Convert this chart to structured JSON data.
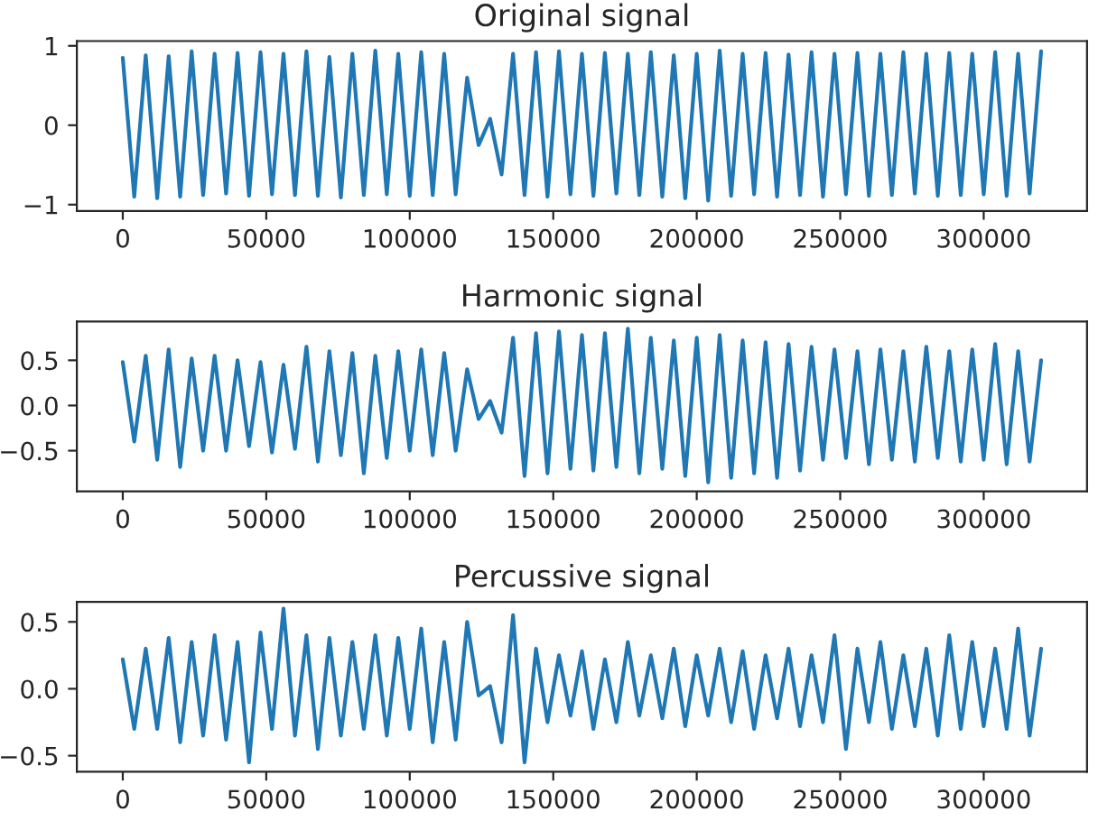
{
  "chart_data": [
    {
      "type": "line",
      "title": "Original signal",
      "xlim": [
        -16000,
        336000
      ],
      "xticks": [
        0,
        50000,
        100000,
        150000,
        200000,
        250000,
        300000
      ],
      "ylim": [
        -1.08,
        1.06
      ],
      "yticks": [
        -1,
        0,
        1
      ],
      "grid": false,
      "legend": false,
      "x": [
        0,
        4000,
        8000,
        12000,
        16000,
        20000,
        24000,
        28000,
        32000,
        36000,
        40000,
        44000,
        48000,
        52000,
        56000,
        60000,
        64000,
        68000,
        72000,
        76000,
        80000,
        84000,
        88000,
        92000,
        96000,
        100000,
        104000,
        108000,
        112000,
        116000,
        120000,
        124000,
        128000,
        132000,
        136000,
        140000,
        144000,
        148000,
        152000,
        156000,
        160000,
        164000,
        168000,
        172000,
        176000,
        180000,
        184000,
        188000,
        192000,
        196000,
        200000,
        204000,
        208000,
        212000,
        216000,
        220000,
        224000,
        228000,
        232000,
        236000,
        240000,
        244000,
        248000,
        252000,
        256000,
        260000,
        264000,
        268000,
        272000,
        276000,
        280000,
        284000,
        288000,
        292000,
        296000,
        300000,
        304000,
        308000,
        312000,
        316000,
        320000
      ],
      "series": [
        {
          "color": "#1f77b4",
          "values": [
            0.85,
            -0.9,
            0.88,
            -0.92,
            0.87,
            -0.9,
            0.93,
            -0.88,
            0.9,
            -0.86,
            0.91,
            -0.89,
            0.92,
            -0.87,
            0.9,
            -0.88,
            0.93,
            -0.89,
            0.86,
            -0.91,
            0.9,
            -0.88,
            0.94,
            -0.87,
            0.9,
            -0.89,
            0.92,
            -0.88,
            0.9,
            -0.87,
            0.6,
            -0.25,
            0.08,
            -0.62,
            0.9,
            -0.88,
            0.92,
            -0.9,
            0.93,
            -0.87,
            0.9,
            -0.89,
            0.91,
            -0.86,
            0.9,
            -0.88,
            0.92,
            -0.9,
            0.88,
            -0.92,
            0.9,
            -0.95,
            0.94,
            -0.89,
            0.9,
            -0.87,
            0.91,
            -0.9,
            0.89,
            -0.88,
            0.92,
            -0.9,
            0.9,
            -0.87,
            0.91,
            -0.89,
            0.9,
            -0.88,
            0.92,
            -0.86,
            0.9,
            -0.89,
            0.91,
            -0.88,
            0.9,
            -0.87,
            0.92,
            -0.89,
            0.9,
            -0.86,
            0.93
          ]
        }
      ]
    },
    {
      "type": "line",
      "title": "Harmonic signal",
      "xlim": [
        -16000,
        336000
      ],
      "xticks": [
        0,
        50000,
        100000,
        150000,
        200000,
        250000,
        300000
      ],
      "ylim": [
        -0.95,
        0.93
      ],
      "yticks": [
        -0.5,
        {
          "value": 0,
          "label": "0.0"
        },
        0.5
      ],
      "grid": false,
      "legend": false,
      "x": [
        0,
        4000,
        8000,
        12000,
        16000,
        20000,
        24000,
        28000,
        32000,
        36000,
        40000,
        44000,
        48000,
        52000,
        56000,
        60000,
        64000,
        68000,
        72000,
        76000,
        80000,
        84000,
        88000,
        92000,
        96000,
        100000,
        104000,
        108000,
        112000,
        116000,
        120000,
        124000,
        128000,
        132000,
        136000,
        140000,
        144000,
        148000,
        152000,
        156000,
        160000,
        164000,
        168000,
        172000,
        176000,
        180000,
        184000,
        188000,
        192000,
        196000,
        200000,
        204000,
        208000,
        212000,
        216000,
        220000,
        224000,
        228000,
        232000,
        236000,
        240000,
        244000,
        248000,
        252000,
        256000,
        260000,
        264000,
        268000,
        272000,
        276000,
        280000,
        284000,
        288000,
        292000,
        296000,
        300000,
        304000,
        308000,
        312000,
        316000,
        320000
      ],
      "series": [
        {
          "color": "#1f77b4",
          "values": [
            0.48,
            -0.4,
            0.55,
            -0.6,
            0.62,
            -0.68,
            0.52,
            -0.5,
            0.55,
            -0.5,
            0.5,
            -0.45,
            0.48,
            -0.52,
            0.45,
            -0.48,
            0.65,
            -0.62,
            0.6,
            -0.55,
            0.58,
            -0.75,
            0.55,
            -0.58,
            0.6,
            -0.5,
            0.62,
            -0.55,
            0.58,
            -0.5,
            0.4,
            -0.15,
            0.05,
            -0.3,
            0.75,
            -0.78,
            0.8,
            -0.75,
            0.82,
            -0.7,
            0.78,
            -0.72,
            0.8,
            -0.68,
            0.85,
            -0.75,
            0.75,
            -0.7,
            0.72,
            -0.78,
            0.75,
            -0.85,
            0.78,
            -0.8,
            0.72,
            -0.75,
            0.7,
            -0.8,
            0.68,
            -0.72,
            0.65,
            -0.6,
            0.62,
            -0.58,
            0.6,
            -0.65,
            0.62,
            -0.6,
            0.6,
            -0.62,
            0.65,
            -0.58,
            0.6,
            -0.62,
            0.62,
            -0.6,
            0.68,
            -0.65,
            0.6,
            -0.62,
            0.5
          ]
        }
      ]
    },
    {
      "type": "line",
      "title": "Percussive signal",
      "xlim": [
        -16000,
        336000
      ],
      "xticks": [
        0,
        50000,
        100000,
        150000,
        200000,
        250000,
        300000
      ],
      "ylim": [
        -0.62,
        0.65
      ],
      "yticks": [
        -0.5,
        {
          "value": 0,
          "label": "0.0"
        },
        0.5
      ],
      "grid": false,
      "legend": false,
      "x": [
        0,
        4000,
        8000,
        12000,
        16000,
        20000,
        24000,
        28000,
        32000,
        36000,
        40000,
        44000,
        48000,
        52000,
        56000,
        60000,
        64000,
        68000,
        72000,
        76000,
        80000,
        84000,
        88000,
        92000,
        96000,
        100000,
        104000,
        108000,
        112000,
        116000,
        120000,
        124000,
        128000,
        132000,
        136000,
        140000,
        144000,
        148000,
        152000,
        156000,
        160000,
        164000,
        168000,
        172000,
        176000,
        180000,
        184000,
        188000,
        192000,
        196000,
        200000,
        204000,
        208000,
        212000,
        216000,
        220000,
        224000,
        228000,
        232000,
        236000,
        240000,
        244000,
        248000,
        252000,
        256000,
        260000,
        264000,
        268000,
        272000,
        276000,
        280000,
        284000,
        288000,
        292000,
        296000,
        300000,
        304000,
        308000,
        312000,
        316000,
        320000
      ],
      "series": [
        {
          "color": "#1f77b4",
          "values": [
            0.22,
            -0.3,
            0.3,
            -0.3,
            0.38,
            -0.4,
            0.35,
            -0.35,
            0.4,
            -0.38,
            0.35,
            -0.55,
            0.42,
            -0.3,
            0.6,
            -0.35,
            0.4,
            -0.45,
            0.38,
            -0.35,
            0.35,
            -0.3,
            0.4,
            -0.35,
            0.38,
            -0.3,
            0.45,
            -0.4,
            0.35,
            -0.38,
            0.5,
            -0.05,
            0.02,
            -0.4,
            0.55,
            -0.55,
            0.3,
            -0.25,
            0.25,
            -0.2,
            0.28,
            -0.3,
            0.22,
            -0.25,
            0.35,
            -0.2,
            0.25,
            -0.22,
            0.3,
            -0.28,
            0.25,
            -0.2,
            0.3,
            -0.25,
            0.28,
            -0.3,
            0.25,
            -0.22,
            0.3,
            -0.28,
            0.25,
            -0.25,
            0.4,
            -0.45,
            0.3,
            -0.25,
            0.35,
            -0.3,
            0.25,
            -0.28,
            0.3,
            -0.35,
            0.4,
            -0.3,
            0.35,
            -0.28,
            0.3,
            -0.3,
            0.45,
            -0.35,
            0.3
          ]
        }
      ]
    }
  ]
}
